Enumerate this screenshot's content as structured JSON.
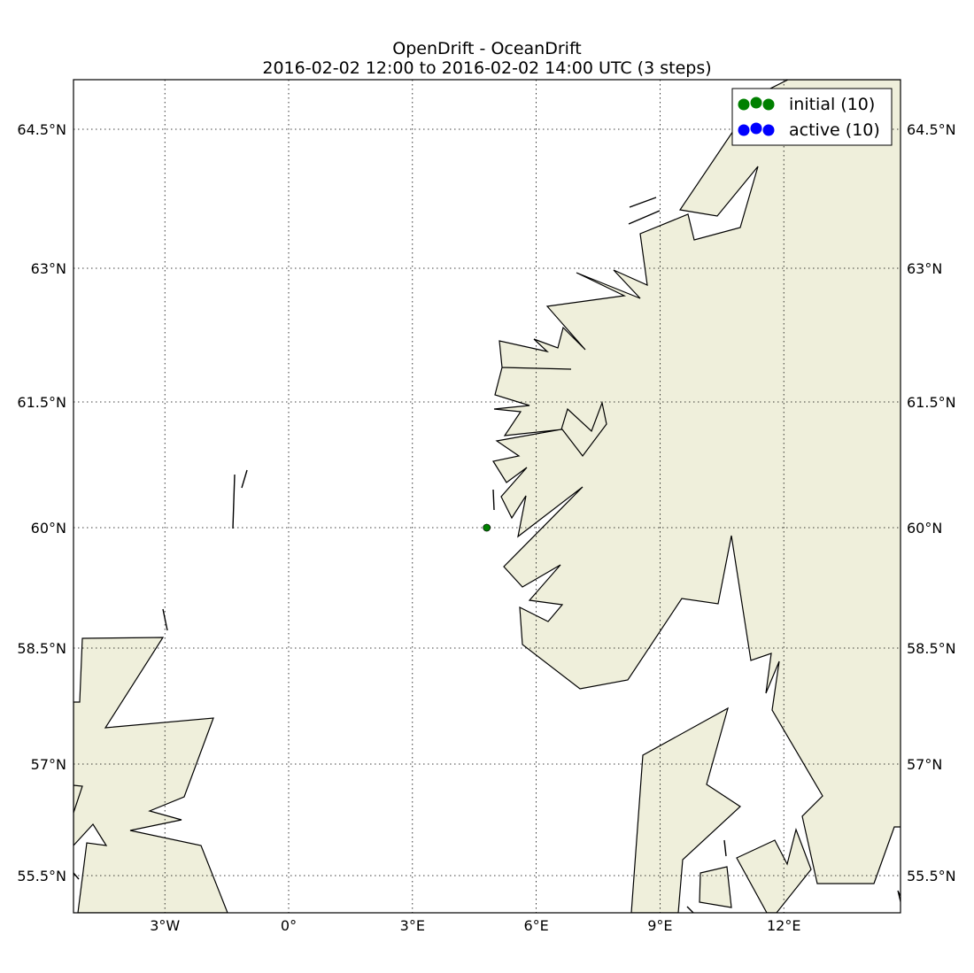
{
  "title": {
    "line1": "OpenDrift - OceanDrift",
    "line2": "2016-02-02 12:00 to 2016-02-02 14:00 UTC (3 steps)"
  },
  "axes": {
    "x_ticks": [
      {
        "lon": -3,
        "label": "3°W"
      },
      {
        "lon": 0,
        "label": "0°"
      },
      {
        "lon": 3,
        "label": "3°E"
      },
      {
        "lon": 6,
        "label": "6°E"
      },
      {
        "lon": 9,
        "label": "9°E"
      },
      {
        "lon": 12,
        "label": "12°E"
      }
    ],
    "y_ticks": [
      {
        "lat": 64.5,
        "label": "64.5°N"
      },
      {
        "lat": 63,
        "label": "63°N"
      },
      {
        "lat": 61.5,
        "label": "61.5°N"
      },
      {
        "lat": 60,
        "label": "60°N"
      },
      {
        "lat": 58.5,
        "label": "58.5°N"
      },
      {
        "lat": 57,
        "label": "57°N"
      },
      {
        "lat": 55.5,
        "label": "55.5°N"
      }
    ],
    "grid": "dotted"
  },
  "legend": {
    "position": "top-right",
    "entries": [
      {
        "label": "initial (10)",
        "color": "#008000"
      },
      {
        "label": "active (10)",
        "color": "#0000ff"
      }
    ]
  },
  "colors": {
    "land": "#efefdb",
    "coastline": "#000000",
    "initial": "#008000",
    "active": "#0000ff"
  },
  "particles": {
    "lon": 4.8,
    "lat": 60.0,
    "initial_count": 10,
    "active_count": 10
  }
}
